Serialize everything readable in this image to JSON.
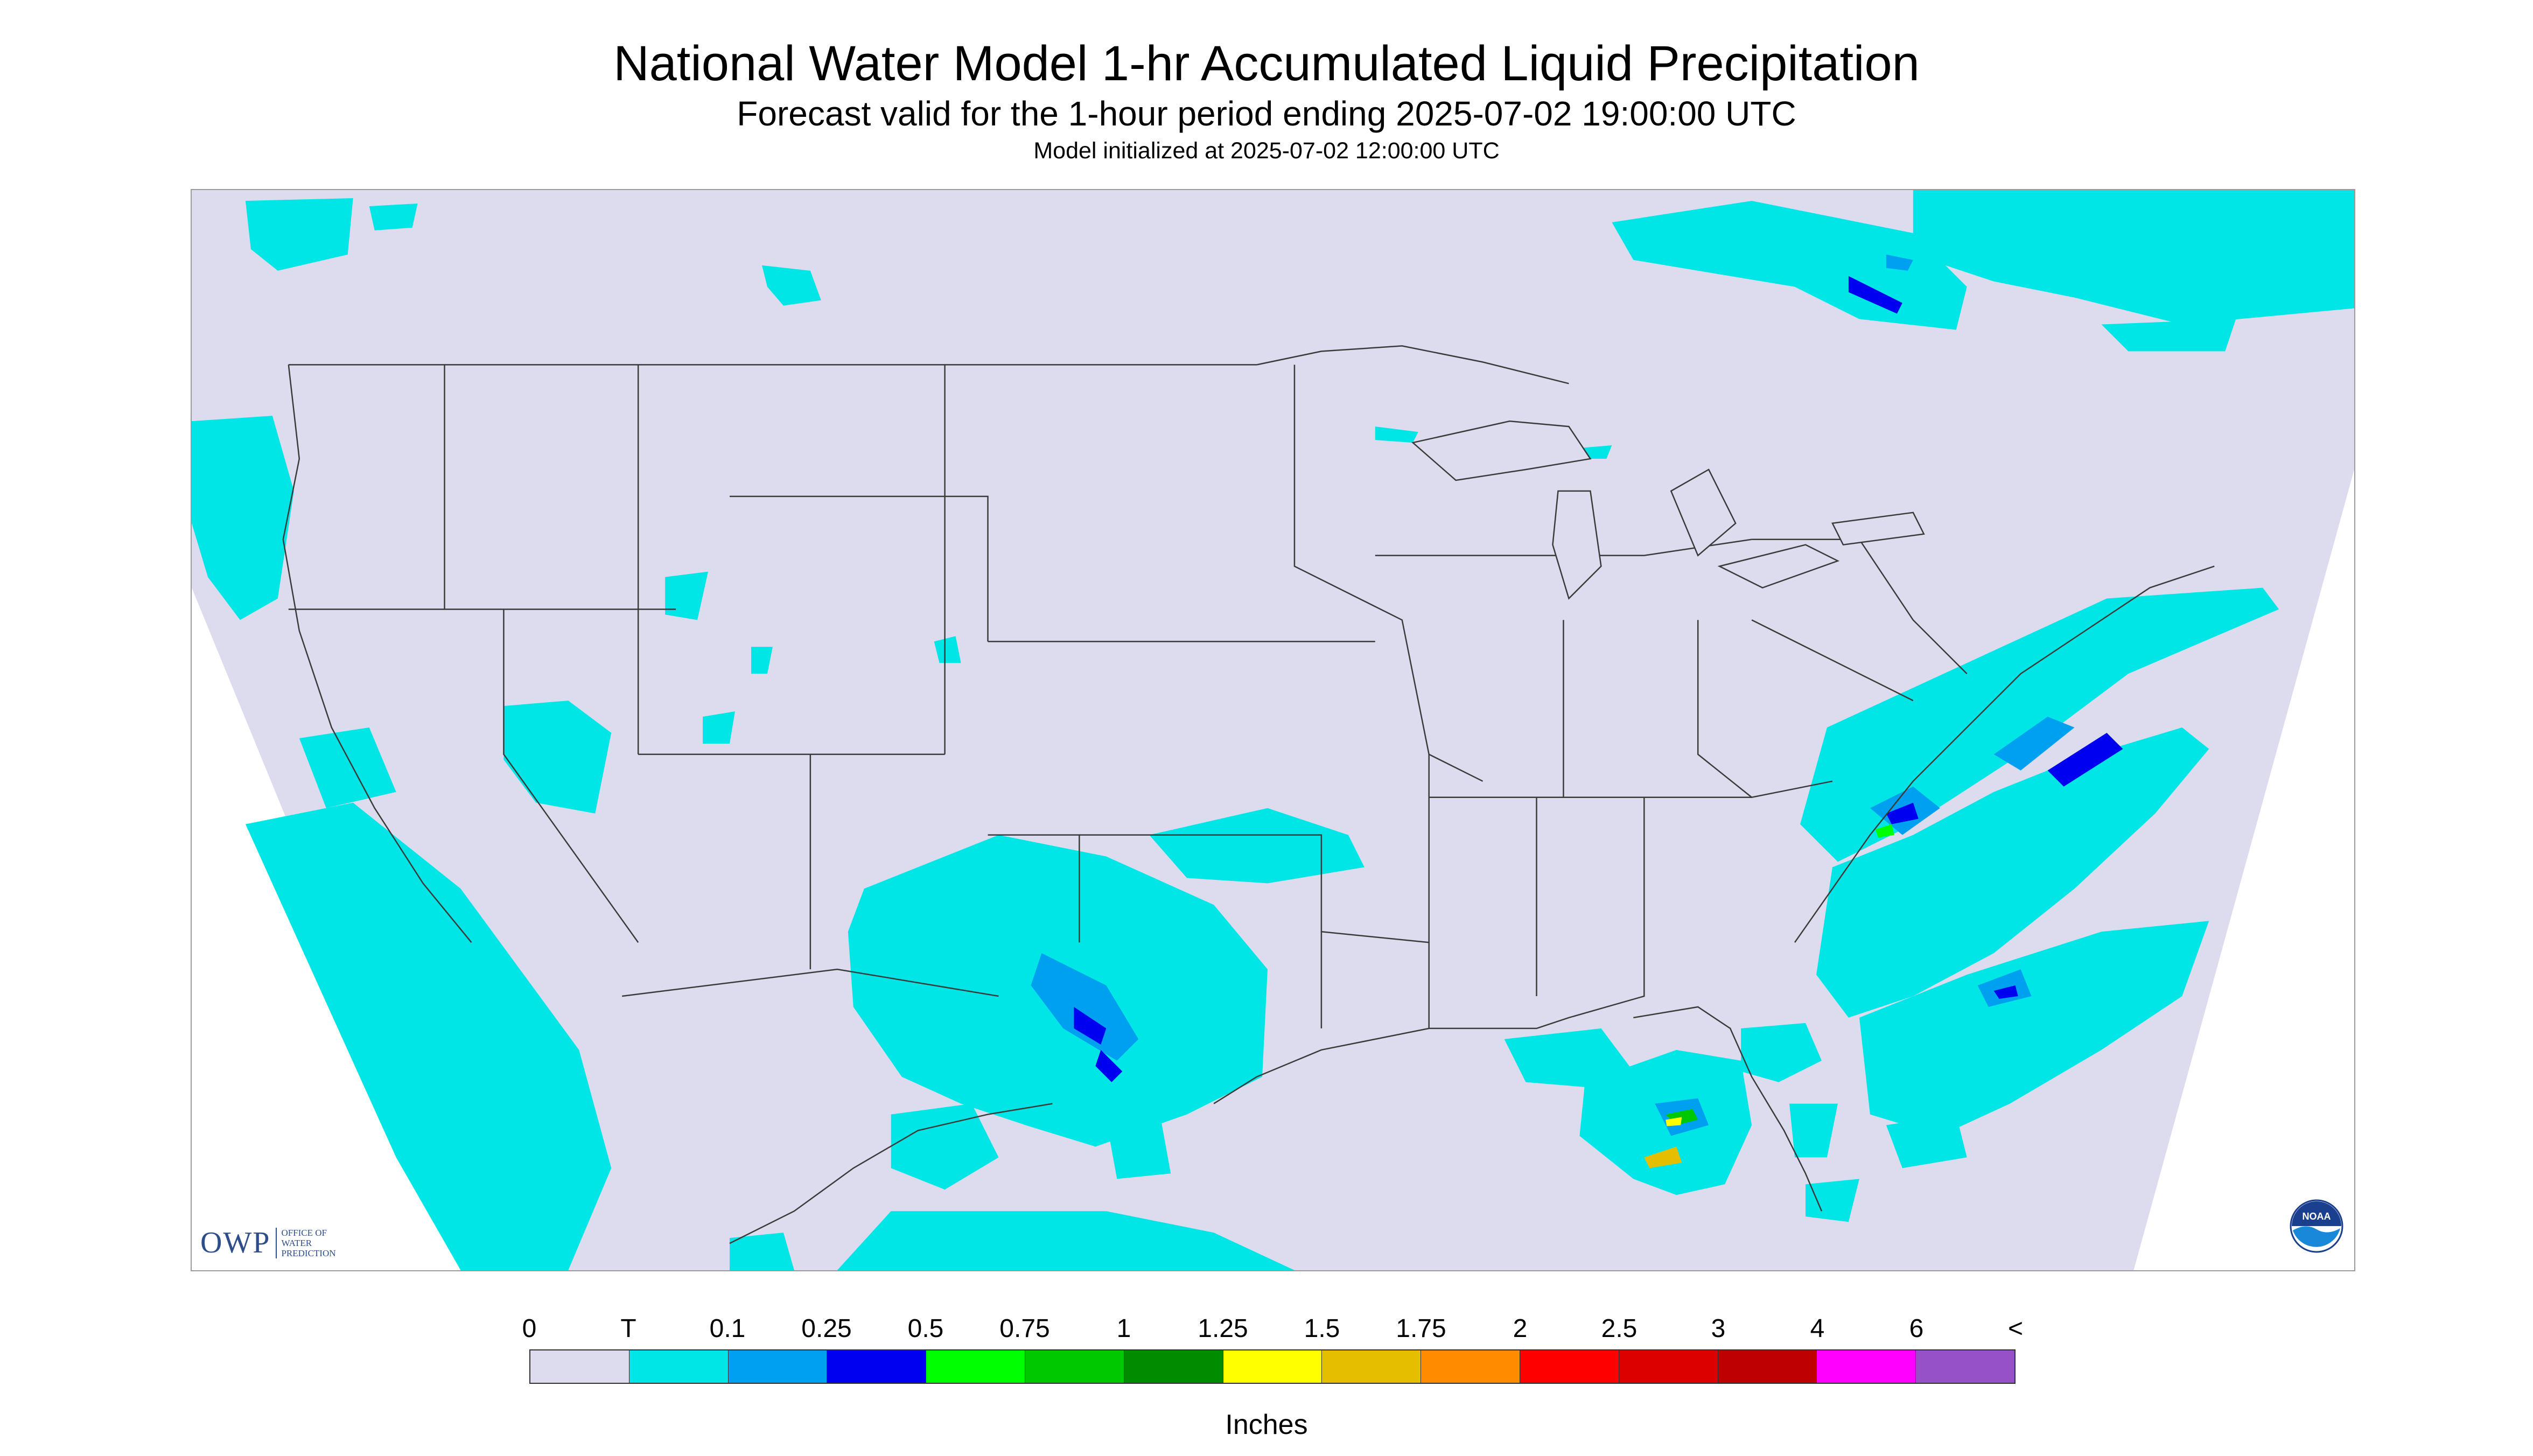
{
  "header": {
    "title": "National Water Model 1-hr Accumulated Liquid Precipitation",
    "subtitle": "Forecast valid for the 1-hour period ending 2025-07-02 19:00:00 UTC",
    "init": "Model initialized at 2025-07-02 12:00:00 UTC"
  },
  "logos": {
    "owp_mark": "OWP",
    "owp_text": "OFFICE OF WATER PREDICTION",
    "noaa_text": "NOAA"
  },
  "colors": {
    "domain_fill": "#dcdcee",
    "outside_fill": "#ffffff",
    "boundary": "#3a3a3a"
  },
  "legend": {
    "units": "Inches",
    "tick_labels": [
      "0",
      "T",
      "0.1",
      "0.25",
      "0.5",
      "0.75",
      "1",
      "1.25",
      "1.5",
      "1.75",
      "2",
      "2.5",
      "3",
      "4",
      "6",
      "<"
    ],
    "colors": [
      "#dcdcee",
      "#00e6e6",
      "#00a0f0",
      "#0000f0",
      "#00ff00",
      "#00c800",
      "#008c00",
      "#ffff00",
      "#e6be00",
      "#ff8c00",
      "#ff0000",
      "#dc0000",
      "#be0000",
      "#ff00ff",
      "#9650c8"
    ]
  }
}
